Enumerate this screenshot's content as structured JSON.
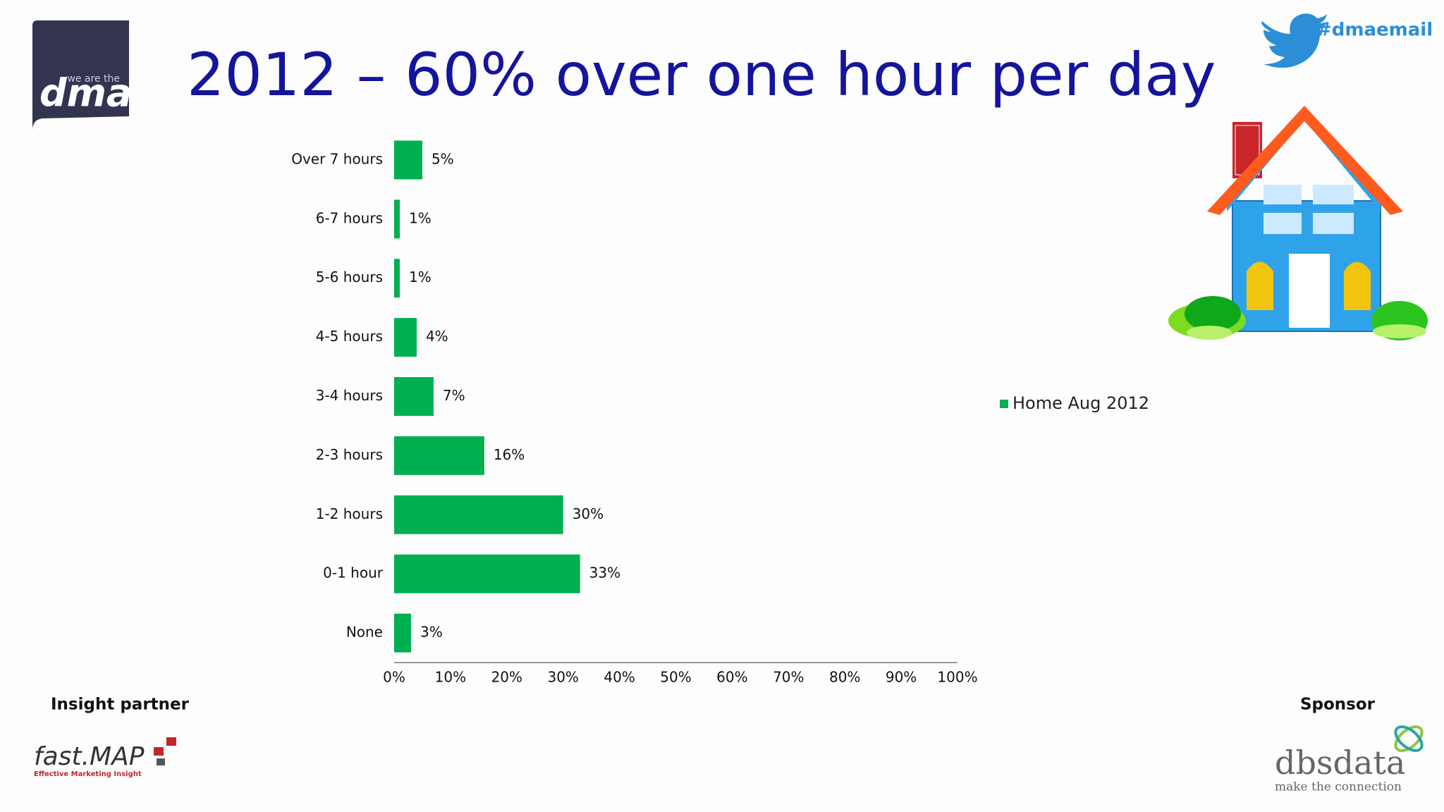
{
  "slide": {
    "logo_tag": "we are the",
    "logo_name": "dma",
    "hashtag": "#dmaemail",
    "insight_partner": "Insight partner",
    "sponsor": "Sponsor",
    "partner_logo": "fast.MAP",
    "partner_tagline": "Effective Marketing Insight",
    "sponsor_logo": "dbsdata",
    "sponsor_tagline": "make the connection"
  },
  "chart_data": {
    "type": "hbar",
    "title": "2012 – 60% over one hour per day",
    "categories": [
      "Over 7 hours",
      "6-7 hours",
      "5-6 hours",
      "4-5 hours",
      "3-4 hours",
      "2-3 hours",
      "1-2 hours",
      "0-1 hour",
      "None"
    ],
    "series": [
      {
        "name": "Home Aug 2012",
        "color": "#00b050",
        "values": [
          5,
          1,
          1,
          4,
          7,
          16,
          30,
          33,
          3
        ],
        "value_labels": [
          "5%",
          "1%",
          "1%",
          "4%",
          "7%",
          "16%",
          "30%",
          "33%",
          "3%"
        ]
      }
    ],
    "xlim": [
      0,
      100
    ],
    "xticks": [
      {
        "value": 0,
        "label": "0%"
      },
      {
        "value": 10,
        "label": "10%"
      },
      {
        "value": 20,
        "label": "20%"
      },
      {
        "value": 30,
        "label": "30%"
      },
      {
        "value": 40,
        "label": "40%"
      },
      {
        "value": 50,
        "label": "50%"
      },
      {
        "value": 60,
        "label": "60%"
      },
      {
        "value": 70,
        "label": "70%"
      },
      {
        "value": 80,
        "label": "80%"
      },
      {
        "value": 90,
        "label": "90%"
      },
      {
        "value": 100,
        "label": "100%"
      }
    ],
    "legend": "right"
  }
}
